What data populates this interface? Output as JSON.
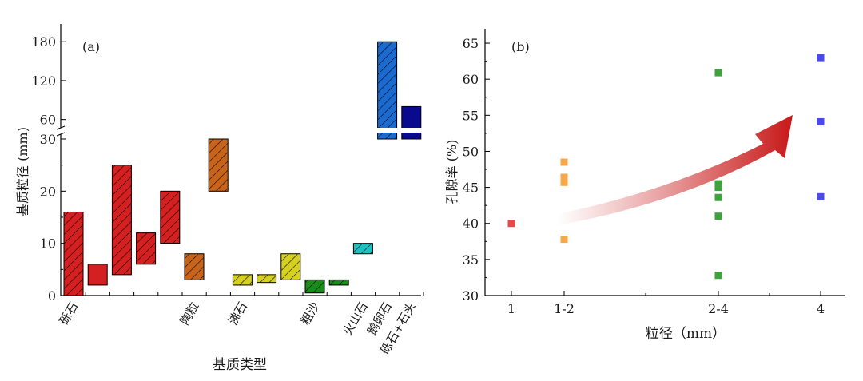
{
  "chart_data": [
    {
      "panel": "(a)",
      "type": "floating-bar",
      "xlabel": "基质类型",
      "ylabel": "基质粒径 (mm)",
      "ylim_lower": [
        0,
        30
      ],
      "ylim_upper": [
        30,
        200
      ],
      "yticks_lower": [
        "0",
        "10",
        "20",
        "30"
      ],
      "yticks_upper": [
        "60",
        "120",
        "180"
      ],
      "category_labels": [
        {
          "text": "砾石",
          "bar_index": 0
        },
        {
          "text": "陶粒",
          "bar_index": 5
        },
        {
          "text": "沸石",
          "bar_index": 7
        },
        {
          "text": "粗沙",
          "bar_index": 10
        },
        {
          "text": "火山石",
          "bar_index": 12
        },
        {
          "text": "鹅卵石",
          "bar_index": 13
        },
        {
          "text": "砾石+石头",
          "bar_index": 14
        }
      ],
      "bars": [
        {
          "low": 0,
          "high": 16,
          "color": "#d42020",
          "hatch": true
        },
        {
          "low": 2,
          "high": 6,
          "color": "#d42020",
          "hatch": false
        },
        {
          "low": 4,
          "high": 25,
          "color": "#d42020",
          "hatch": true
        },
        {
          "low": 6,
          "high": 12,
          "color": "#d42020",
          "hatch": true
        },
        {
          "low": 10,
          "high": 20,
          "color": "#d42020",
          "hatch": true
        },
        {
          "low": 3,
          "high": 8,
          "color": "#c8641a",
          "hatch": true
        },
        {
          "low": 20,
          "high": 30,
          "color": "#c8641a",
          "hatch": true
        },
        {
          "low": 2,
          "high": 4,
          "color": "#d6d020",
          "hatch": true
        },
        {
          "low": 2.5,
          "high": 4,
          "color": "#d6d020",
          "hatch": true
        },
        {
          "low": 3,
          "high": 8,
          "color": "#d6d020",
          "hatch": true
        },
        {
          "low": 0.5,
          "high": 3,
          "color": "#1a8c1a",
          "hatch": true
        },
        {
          "low": 2,
          "high": 3,
          "color": "#1a8c1a",
          "hatch": true
        },
        {
          "low": 8,
          "high": 10,
          "color": "#20c0c0",
          "hatch": true
        },
        {
          "low": 30,
          "high": 180,
          "color": "#1a6ad0",
          "hatch": true
        },
        {
          "low": 30,
          "high": 80,
          "color": "#0a0a8c",
          "hatch": false
        }
      ]
    },
    {
      "panel": "(b)",
      "type": "scatter",
      "xlabel": "粒径（mm）",
      "ylabel": "孔隙率 (%)",
      "ylim": [
        30,
        67
      ],
      "yticks": [
        30,
        35,
        40,
        45,
        50,
        55,
        60,
        65
      ],
      "categories": [
        "1",
        "1-2",
        "2-4",
        "4"
      ],
      "series": [
        {
          "color": "#e84a4a",
          "points": [
            {
              "x": "1",
              "y": 40
            }
          ]
        },
        {
          "color": "#f6a84a",
          "points": [
            {
              "x": "1-2",
              "y": 48.5
            },
            {
              "x": "1-2",
              "y": 46.4
            },
            {
              "x": "1-2",
              "y": 45.7
            },
            {
              "x": "1-2",
              "y": 37.8
            }
          ]
        },
        {
          "color": "#3ea23e",
          "points": [
            {
              "x": "2-4",
              "y": 60.9
            },
            {
              "x": "2-4",
              "y": 45.5
            },
            {
              "x": "2-4",
              "y": 45
            },
            {
              "x": "2-4",
              "y": 43.6
            },
            {
              "x": "2-4",
              "y": 41
            },
            {
              "x": "2-4",
              "y": 32.8
            }
          ]
        },
        {
          "color": "#4a4aee",
          "points": [
            {
              "x": "4",
              "y": 63
            },
            {
              "x": "4",
              "y": 54.1
            },
            {
              "x": "4",
              "y": 43.7
            }
          ]
        }
      ],
      "annotation": "increasing-trend-arrow"
    }
  ]
}
